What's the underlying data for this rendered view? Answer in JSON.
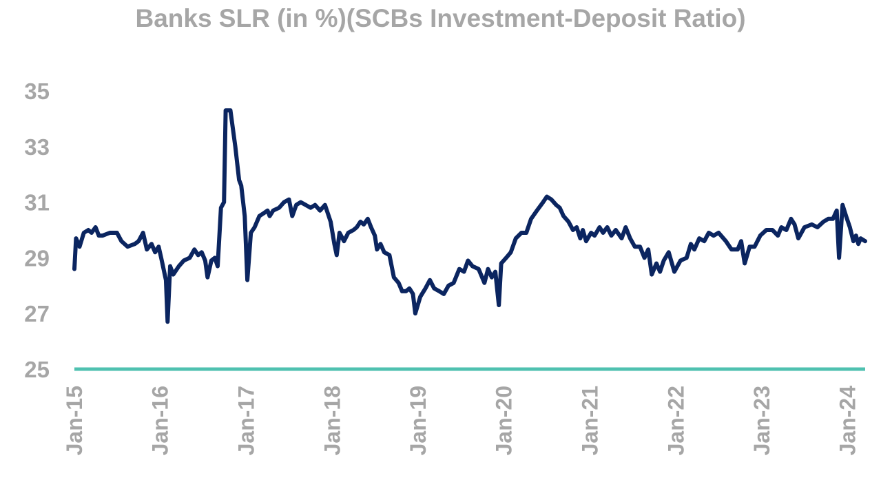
{
  "chart_data": {
    "type": "line",
    "title": "Banks SLR (in %)(SCBs Investment-Deposit Ratio)",
    "xlabel": "",
    "ylabel": "",
    "ylim": [
      25,
      35
    ],
    "y_ticks": [
      "25",
      "27",
      "29",
      "31",
      "33",
      "35"
    ],
    "x_ticks": [
      "Jan-15",
      "Jan-16",
      "Jan-17",
      "Jan-18",
      "Jan-19",
      "Jan-20",
      "Jan-21",
      "Jan-22",
      "Jan-23",
      "Jan-24"
    ],
    "grid": false,
    "legend": "none",
    "colors": {
      "series": "#0b2560",
      "baseline": "#4fc1b0",
      "text": "#a6a6a6"
    },
    "reference_line": {
      "y": 25
    },
    "series": [
      {
        "points": [
          [
            "2015-01-01",
            28.6
          ],
          [
            "2015-01-08",
            29.7
          ],
          [
            "2015-01-23",
            29.4
          ],
          [
            "2015-02-10",
            29.9
          ],
          [
            "2015-03-01",
            30.0
          ],
          [
            "2015-03-15",
            29.9
          ],
          [
            "2015-04-01",
            30.1
          ],
          [
            "2015-04-15",
            29.8
          ],
          [
            "2015-05-01",
            29.8
          ],
          [
            "2015-06-01",
            29.9
          ],
          [
            "2015-07-01",
            29.9
          ],
          [
            "2015-07-20",
            29.6
          ],
          [
            "2015-08-15",
            29.4
          ],
          [
            "2015-09-15",
            29.5
          ],
          [
            "2015-10-01",
            29.6
          ],
          [
            "2015-10-20",
            29.9
          ],
          [
            "2015-11-05",
            29.3
          ],
          [
            "2015-11-25",
            29.5
          ],
          [
            "2015-12-10",
            29.2
          ],
          [
            "2015-12-25",
            29.4
          ],
          [
            "2016-01-05",
            29.0
          ],
          [
            "2016-01-25",
            28.2
          ],
          [
            "2016-02-01",
            26.7
          ],
          [
            "2016-02-12",
            28.7
          ],
          [
            "2016-02-25",
            28.4
          ],
          [
            "2016-03-20",
            28.7
          ],
          [
            "2016-04-10",
            28.9
          ],
          [
            "2016-05-05",
            29.0
          ],
          [
            "2016-05-25",
            29.3
          ],
          [
            "2016-06-10",
            29.1
          ],
          [
            "2016-06-25",
            29.2
          ],
          [
            "2016-07-10",
            28.9
          ],
          [
            "2016-07-20",
            28.3
          ],
          [
            "2016-08-05",
            28.9
          ],
          [
            "2016-08-20",
            29.0
          ],
          [
            "2016-09-01",
            28.7
          ],
          [
            "2016-09-15",
            30.8
          ],
          [
            "2016-09-28",
            31.0
          ],
          [
            "2016-10-05",
            34.3
          ],
          [
            "2016-10-25",
            34.3
          ],
          [
            "2016-11-15",
            33.0
          ],
          [
            "2016-12-01",
            31.8
          ],
          [
            "2016-12-10",
            31.6
          ],
          [
            "2016-12-25",
            30.5
          ],
          [
            "2017-01-05",
            28.2
          ],
          [
            "2017-01-20",
            29.9
          ],
          [
            "2017-02-05",
            30.1
          ],
          [
            "2017-02-25",
            30.5
          ],
          [
            "2017-03-15",
            30.6
          ],
          [
            "2017-04-01",
            30.7
          ],
          [
            "2017-04-10",
            30.5
          ],
          [
            "2017-04-25",
            30.7
          ],
          [
            "2017-05-20",
            30.8
          ],
          [
            "2017-06-10",
            31.0
          ],
          [
            "2017-07-01",
            31.1
          ],
          [
            "2017-07-15",
            30.5
          ],
          [
            "2017-08-01",
            30.9
          ],
          [
            "2017-08-20",
            31.0
          ],
          [
            "2017-09-10",
            30.9
          ],
          [
            "2017-10-01",
            30.8
          ],
          [
            "2017-10-20",
            30.9
          ],
          [
            "2017-11-10",
            30.7
          ],
          [
            "2017-12-01",
            30.9
          ],
          [
            "2017-12-25",
            30.3
          ],
          [
            "2018-01-10",
            29.5
          ],
          [
            "2018-01-20",
            29.1
          ],
          [
            "2018-02-01",
            29.9
          ],
          [
            "2018-02-20",
            29.6
          ],
          [
            "2018-03-10",
            29.9
          ],
          [
            "2018-04-01",
            30.0
          ],
          [
            "2018-04-15",
            30.1
          ],
          [
            "2018-05-01",
            30.3
          ],
          [
            "2018-05-15",
            30.2
          ],
          [
            "2018-06-01",
            30.4
          ],
          [
            "2018-06-15",
            30.1
          ],
          [
            "2018-07-01",
            29.8
          ],
          [
            "2018-07-10",
            29.3
          ],
          [
            "2018-07-25",
            29.5
          ],
          [
            "2018-08-10",
            29.2
          ],
          [
            "2018-09-01",
            29.1
          ],
          [
            "2018-09-20",
            28.3
          ],
          [
            "2018-10-10",
            28.1
          ],
          [
            "2018-10-25",
            27.8
          ],
          [
            "2018-11-10",
            27.8
          ],
          [
            "2018-11-25",
            27.9
          ],
          [
            "2018-12-10",
            27.7
          ],
          [
            "2018-12-20",
            27.0
          ],
          [
            "2019-01-10",
            27.6
          ],
          [
            "2019-02-01",
            27.9
          ],
          [
            "2019-02-20",
            28.2
          ],
          [
            "2019-03-10",
            27.9
          ],
          [
            "2019-04-01",
            27.8
          ],
          [
            "2019-04-20",
            27.7
          ],
          [
            "2019-05-10",
            28.0
          ],
          [
            "2019-06-01",
            28.1
          ],
          [
            "2019-06-25",
            28.6
          ],
          [
            "2019-07-15",
            28.5
          ],
          [
            "2019-08-01",
            28.9
          ],
          [
            "2019-08-20",
            28.7
          ],
          [
            "2019-09-15",
            28.6
          ],
          [
            "2019-10-10",
            28.1
          ],
          [
            "2019-10-25",
            28.6
          ],
          [
            "2019-11-10",
            28.3
          ],
          [
            "2019-11-25",
            28.5
          ],
          [
            "2019-12-10",
            27.3
          ],
          [
            "2019-12-20",
            28.8
          ],
          [
            "2020-01-10",
            29.0
          ],
          [
            "2020-01-30",
            29.2
          ],
          [
            "2020-02-20",
            29.7
          ],
          [
            "2020-03-15",
            29.9
          ],
          [
            "2020-04-05",
            29.9
          ],
          [
            "2020-04-25",
            30.4
          ],
          [
            "2020-05-20",
            30.7
          ],
          [
            "2020-06-15",
            31.0
          ],
          [
            "2020-07-01",
            31.2
          ],
          [
            "2020-07-20",
            31.1
          ],
          [
            "2020-08-10",
            30.9
          ],
          [
            "2020-08-25",
            30.8
          ],
          [
            "2020-09-10",
            30.5
          ],
          [
            "2020-10-01",
            30.3
          ],
          [
            "2020-10-20",
            30.0
          ],
          [
            "2020-11-05",
            30.1
          ],
          [
            "2020-11-20",
            29.7
          ],
          [
            "2020-12-01",
            30.0
          ],
          [
            "2020-12-15",
            29.6
          ],
          [
            "2021-01-05",
            29.9
          ],
          [
            "2021-01-20",
            29.8
          ],
          [
            "2021-02-10",
            30.1
          ],
          [
            "2021-02-25",
            29.9
          ],
          [
            "2021-03-15",
            30.1
          ],
          [
            "2021-04-01",
            29.8
          ],
          [
            "2021-04-20",
            30.0
          ],
          [
            "2021-05-15",
            29.7
          ],
          [
            "2021-06-01",
            30.1
          ],
          [
            "2021-06-20",
            29.7
          ],
          [
            "2021-07-10",
            29.4
          ],
          [
            "2021-08-01",
            29.4
          ],
          [
            "2021-08-20",
            29.0
          ],
          [
            "2021-09-05",
            29.3
          ],
          [
            "2021-09-20",
            28.4
          ],
          [
            "2021-10-10",
            28.8
          ],
          [
            "2021-10-25",
            28.5
          ],
          [
            "2021-11-10",
            28.9
          ],
          [
            "2021-12-01",
            29.2
          ],
          [
            "2021-12-25",
            28.5
          ],
          [
            "2022-01-20",
            28.9
          ],
          [
            "2022-02-15",
            29.0
          ],
          [
            "2022-03-05",
            29.5
          ],
          [
            "2022-03-20",
            29.3
          ],
          [
            "2022-04-10",
            29.7
          ],
          [
            "2022-05-01",
            29.6
          ],
          [
            "2022-05-20",
            29.9
          ],
          [
            "2022-06-10",
            29.8
          ],
          [
            "2022-07-01",
            29.9
          ],
          [
            "2022-08-01",
            29.6
          ],
          [
            "2022-08-25",
            29.3
          ],
          [
            "2022-09-20",
            29.3
          ],
          [
            "2022-10-05",
            29.6
          ],
          [
            "2022-10-20",
            28.8
          ],
          [
            "2022-11-10",
            29.4
          ],
          [
            "2022-12-01",
            29.4
          ],
          [
            "2022-12-25",
            29.8
          ],
          [
            "2023-01-20",
            30.0
          ],
          [
            "2023-02-15",
            30.0
          ],
          [
            "2023-03-10",
            29.8
          ],
          [
            "2023-03-25",
            30.1
          ],
          [
            "2023-04-15",
            30.0
          ],
          [
            "2023-05-05",
            30.4
          ],
          [
            "2023-05-20",
            30.2
          ],
          [
            "2023-06-05",
            29.7
          ],
          [
            "2023-07-01",
            30.1
          ],
          [
            "2023-08-01",
            30.2
          ],
          [
            "2023-08-25",
            30.1
          ],
          [
            "2023-09-20",
            30.3
          ],
          [
            "2023-10-10",
            30.4
          ],
          [
            "2023-10-30",
            30.4
          ],
          [
            "2023-11-15",
            30.7
          ],
          [
            "2023-11-25",
            29.0
          ],
          [
            "2023-12-10",
            30.9
          ],
          [
            "2023-12-25",
            30.5
          ],
          [
            "2024-01-10",
            30.1
          ],
          [
            "2024-01-25",
            29.6
          ],
          [
            "2024-02-05",
            29.8
          ],
          [
            "2024-02-15",
            29.5
          ],
          [
            "2024-02-25",
            29.7
          ],
          [
            "2024-03-15",
            29.6
          ]
        ]
      }
    ]
  }
}
